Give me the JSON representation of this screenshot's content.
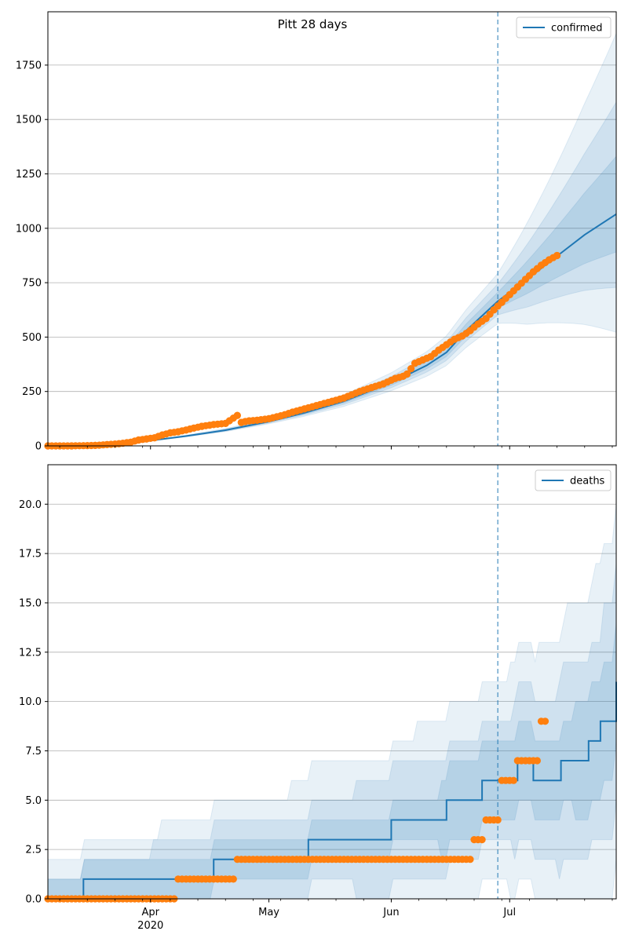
{
  "figure_title": "Pitt 28 days",
  "chart_data": [
    {
      "type": "line",
      "title": "Pitt 28 days",
      "legend": {
        "placement": "top-right",
        "label": "confirmed"
      },
      "x_dates": [
        "2020-03-06",
        "2020-07-28"
      ],
      "x_ticks": [
        "Apr\n2020",
        "May",
        "Jun",
        "Jul"
      ],
      "y_ticks": [
        "0",
        "250",
        "500",
        "750",
        "1000",
        "1250",
        "1500",
        "1750"
      ],
      "ylim": [
        0,
        1995
      ],
      "grid": "y-major",
      "forecast_start": "2020-06-28",
      "series": [
        {
          "name": "confirmed",
          "kind": "model",
          "color": "#1f77b4",
          "x": [
            "2020-03-06",
            "2020-03-20",
            "2020-03-26",
            "2020-03-30",
            "2020-04-03",
            "2020-04-10",
            "2020-04-20",
            "2020-05-01",
            "2020-05-10",
            "2020-05-20",
            "2020-06-01",
            "2020-06-10",
            "2020-06-15",
            "2020-06-20",
            "2020-06-28",
            "2020-07-05",
            "2020-07-15",
            "2020-07-20",
            "2020-07-28"
          ],
          "y": [
            0,
            6,
            11,
            19,
            29,
            45,
            72,
            112,
            152,
            205,
            290,
            370,
            430,
            530,
            665,
            760,
            900,
            970,
            1065
          ]
        },
        {
          "name": "",
          "kind": "observed",
          "color": "#ff7f0e",
          "x": [
            "2020-03-06",
            "2020-03-12",
            "2020-03-18",
            "2020-03-21",
            "2020-03-24",
            "2020-03-27",
            "2020-03-29",
            "2020-03-31",
            "2020-04-02",
            "2020-04-04",
            "2020-04-06",
            "2020-04-08",
            "2020-04-10",
            "2020-04-12",
            "2020-04-14",
            "2020-04-17",
            "2020-04-20",
            "2020-04-23",
            "2020-04-24",
            "2020-04-25",
            "2020-04-26",
            "2020-04-28",
            "2020-05-01",
            "2020-05-04",
            "2020-05-07",
            "2020-05-10",
            "2020-05-13",
            "2020-05-17",
            "2020-05-20",
            "2020-05-24",
            "2020-05-27",
            "2020-05-30",
            "2020-06-02",
            "2020-06-04",
            "2020-06-05",
            "2020-06-07",
            "2020-06-09",
            "2020-06-11",
            "2020-06-13",
            "2020-06-15",
            "2020-06-17",
            "2020-06-19",
            "2020-06-21",
            "2020-06-23",
            "2020-06-25",
            "2020-06-27",
            "2020-06-29",
            "2020-07-01",
            "2020-07-03",
            "2020-07-05",
            "2020-07-07",
            "2020-07-09",
            "2020-07-11",
            "2020-07-13"
          ],
          "y": [
            0,
            0,
            2,
            6,
            10,
            17,
            27,
            32,
            37,
            50,
            60,
            65,
            73,
            82,
            90,
            98,
            103,
            140,
            108,
            112,
            115,
            118,
            125,
            138,
            155,
            170,
            185,
            205,
            220,
            250,
            268,
            285,
            310,
            320,
            330,
            380,
            395,
            410,
            440,
            465,
            490,
            505,
            530,
            560,
            585,
            625,
            660,
            695,
            730,
            765,
            800,
            830,
            855,
            875
          ]
        }
      ]
    },
    {
      "type": "line",
      "title": "",
      "legend": {
        "placement": "top-right",
        "label": "deaths"
      },
      "x_dates": [
        "2020-03-06",
        "2020-07-28"
      ],
      "x_ticks": [
        "Apr\n2020",
        "May",
        "Jun",
        "Jul"
      ],
      "y_ticks": [
        "0.0",
        "2.5",
        "5.0",
        "7.5",
        "10.0",
        "12.5",
        "15.0",
        "17.5",
        "20.0"
      ],
      "ylim": [
        0,
        22
      ],
      "grid": "y-major",
      "forecast_start": "2020-06-28",
      "series": [
        {
          "name": "deaths",
          "kind": "model",
          "color": "#1f77b4",
          "x": [
            "2020-03-06",
            "2020-03-15",
            "2020-04-17",
            "2020-05-11",
            "2020-06-01",
            "2020-06-15",
            "2020-06-24",
            "2020-07-03",
            "2020-07-07",
            "2020-07-14",
            "2020-07-21",
            "2020-07-24",
            "2020-07-28"
          ],
          "y": [
            0,
            1,
            2,
            3,
            4,
            5,
            6,
            7,
            6,
            7,
            8,
            9,
            11
          ]
        },
        {
          "name": "",
          "kind": "observed",
          "color": "#ff7f0e",
          "x": [
            "2020-03-06",
            "2020-04-08",
            "2020-04-23",
            "2020-06-19",
            "2020-06-22",
            "2020-06-25",
            "2020-06-29",
            "2020-07-03",
            "2020-07-09"
          ],
          "y": [
            0,
            1,
            2,
            2,
            3,
            4,
            6,
            7,
            9
          ]
        }
      ]
    }
  ]
}
